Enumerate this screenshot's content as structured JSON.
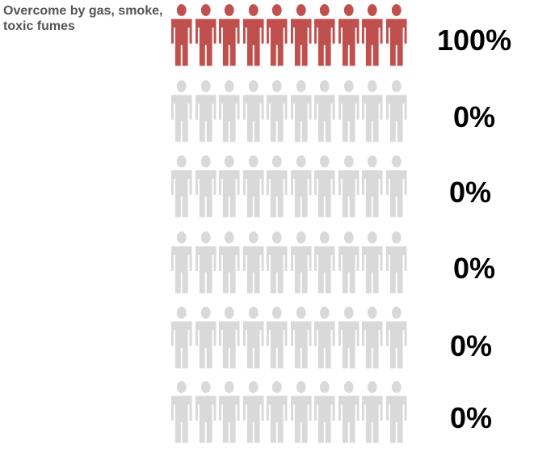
{
  "chart_data": {
    "type": "pictograph",
    "icon": "person-icon",
    "icons_per_row": 10,
    "colors": {
      "active": "#c0504d",
      "inactive": "#d9d9d9",
      "label": "#555555",
      "value": "#000000"
    },
    "rows": [
      {
        "label": "Overcome by gas, smoke, toxic fumes",
        "value": 100,
        "value_label": "100%"
      },
      {
        "label": "",
        "value": 0,
        "value_label": "0%"
      },
      {
        "label": "",
        "value": 0,
        "value_label": "0%"
      },
      {
        "label": "",
        "value": 0,
        "value_label": "0%"
      },
      {
        "label": "",
        "value": 0,
        "value_label": "0%"
      },
      {
        "label": "",
        "value": 0,
        "value_label": "0%"
      }
    ]
  }
}
